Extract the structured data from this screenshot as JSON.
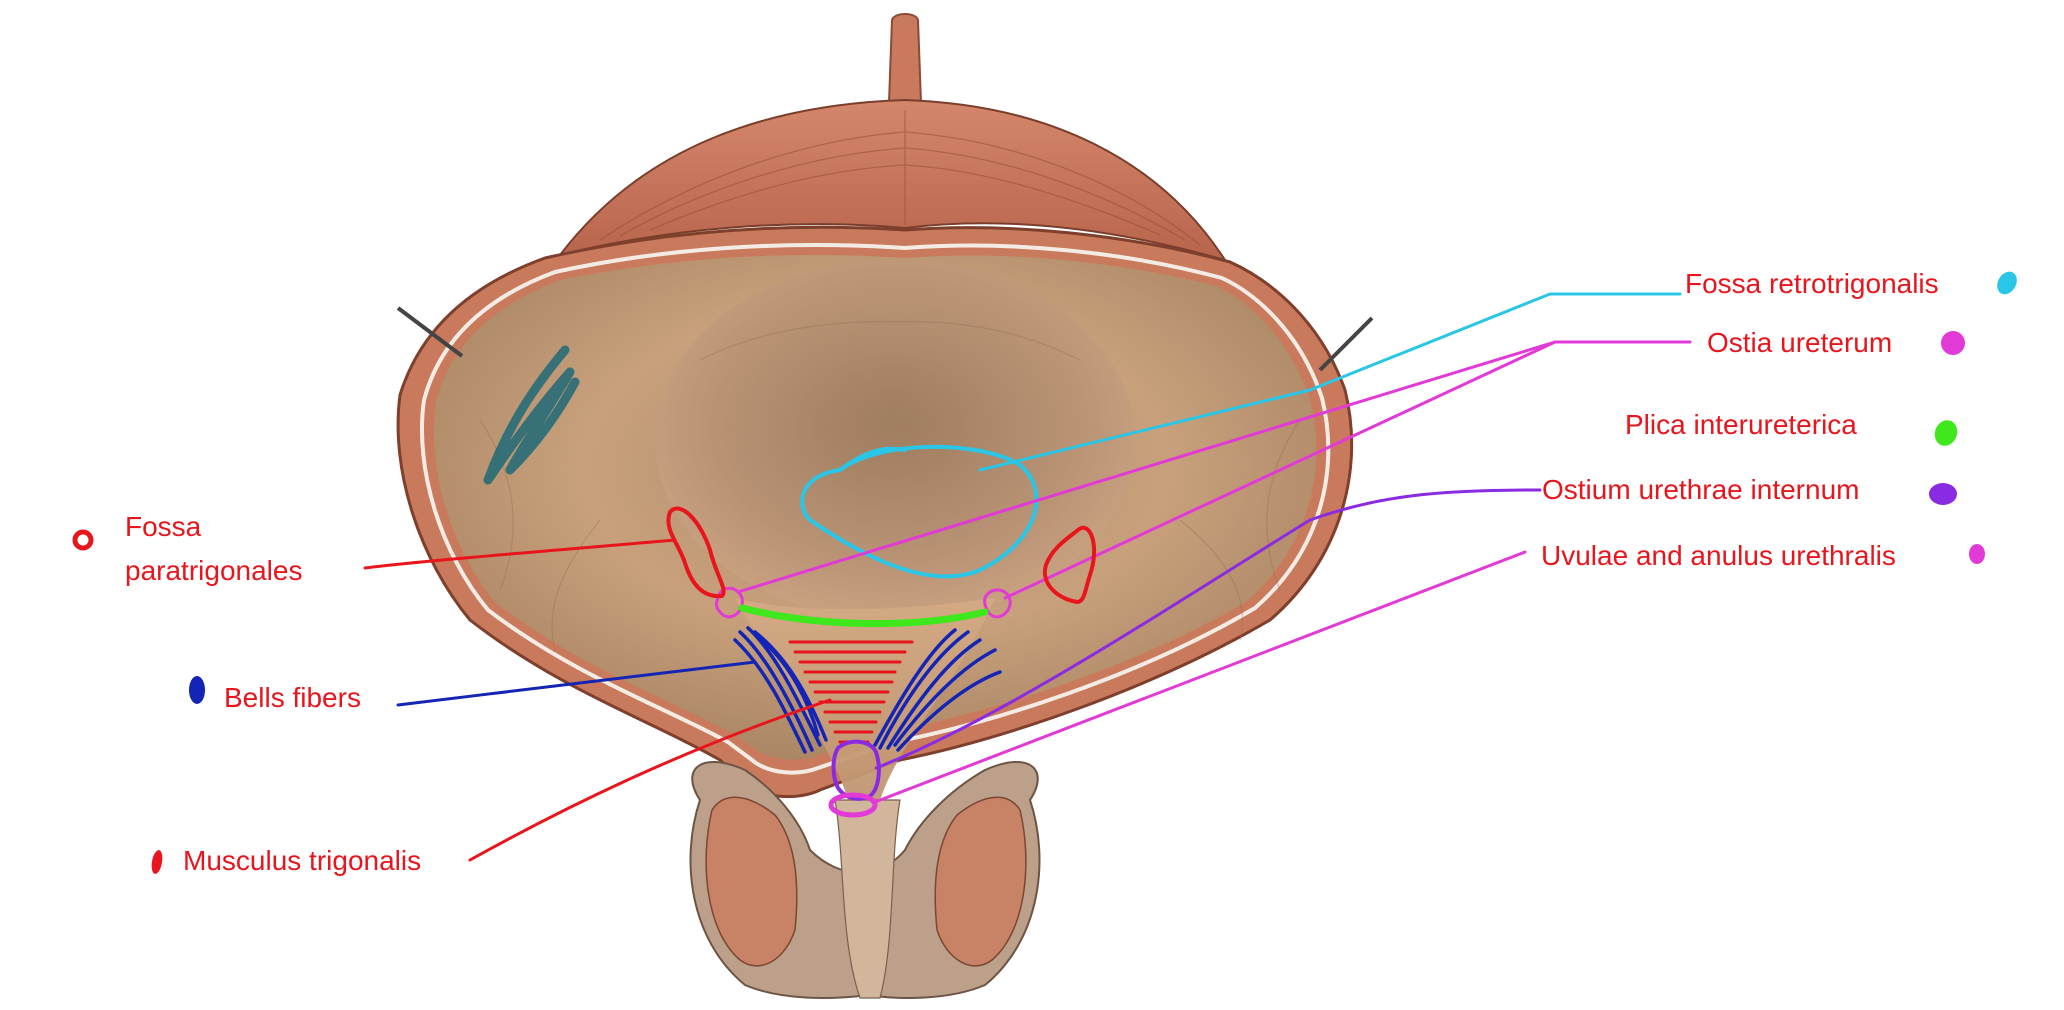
{
  "labels": {
    "fossa_retrotrigonalis": "Fossa retrotrigonalis",
    "ostia_ureterum": "Ostia ureterum",
    "plica_interureterica": "Plica interureterica",
    "ostium_urethrae_internum": "Ostium urethrae internum",
    "uvulae": "Uvulae and anulus urethralis",
    "fossa_para_line1": "Fossa",
    "fossa_para_line2": "paratrigonales",
    "bells_fibers": "Bells fibers",
    "musculus_trigonalis": "Musculus trigonalis"
  },
  "colors": {
    "label_text": "#e8151d",
    "cyan": "#29c6e8",
    "magenta": "#e23ad6",
    "green": "#3ee81c",
    "purple": "#8a2be2",
    "blue": "#1424b4",
    "red": "#e8151d",
    "teal": "#1f6a78",
    "muscle": "#c9775e",
    "mucosa": "#c8a07c"
  }
}
